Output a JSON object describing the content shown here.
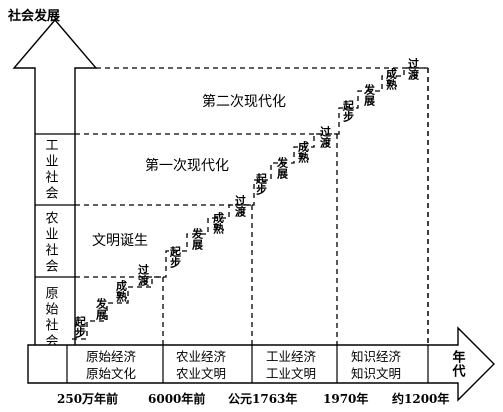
{
  "diagram": {
    "vertical_axis": {
      "title": "社会发展",
      "levels": [
        {
          "label": "原始社会"
        },
        {
          "label": "农业社会"
        },
        {
          "label": "工业社会"
        }
      ]
    },
    "horizontal_axis": {
      "label": "年代",
      "eras": [
        {
          "line1": "原始经济",
          "line2": "原始文化"
        },
        {
          "line1": "农业经济",
          "line2": "农业文明"
        },
        {
          "line1": "工业经济",
          "line2": "工业文明"
        },
        {
          "line1": "知识经济",
          "line2": "知识文明"
        }
      ],
      "time_labels": [
        "250万年前",
        "6000年前",
        "公元1763年",
        "1970年",
        "约1200年"
      ]
    },
    "stage_labels": {
      "civilization_birth": "文明诞生",
      "first_modernization": "第一次现代化",
      "second_modernization": "第二次现代化"
    },
    "phases": [
      "起步",
      "发展",
      "成熟",
      "过渡"
    ]
  }
}
